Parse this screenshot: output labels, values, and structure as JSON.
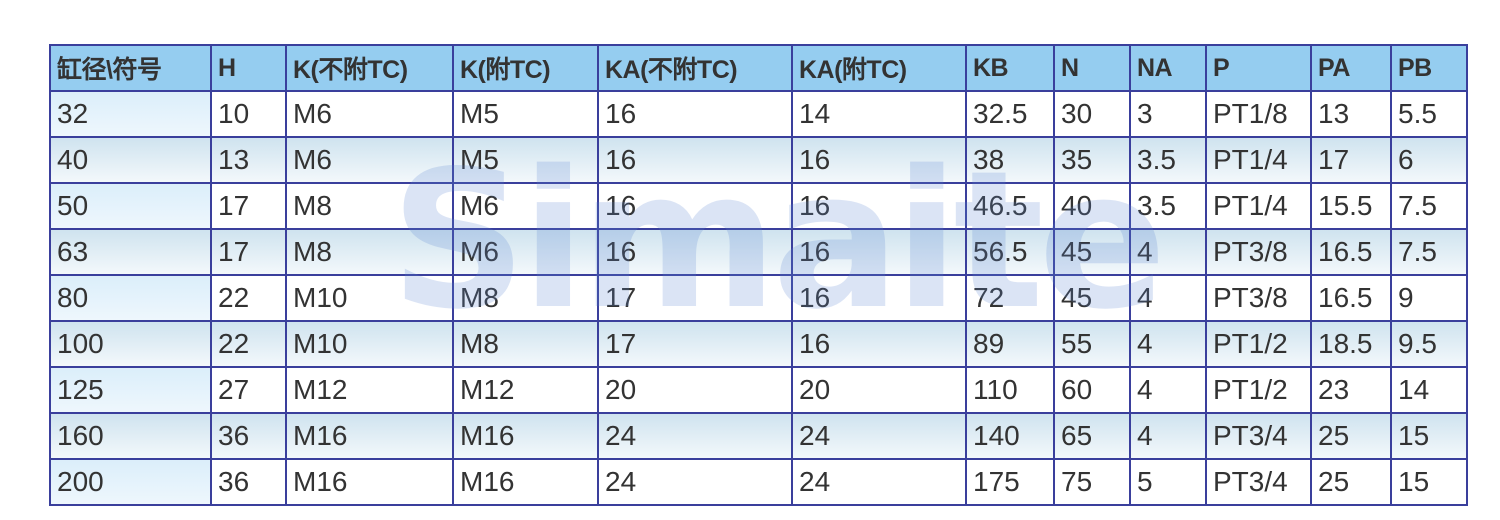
{
  "watermark": "Simaite",
  "headers": [
    "缸径\\符号",
    "H",
    "K(不附TC)",
    "K(附TC)",
    "KA(不附TC)",
    "KA(附TC)",
    "KB",
    "N",
    "NA",
    "P",
    "PA",
    "PB"
  ],
  "rows": [
    [
      "32",
      "10",
      "M6",
      "M5",
      "16",
      "14",
      "32.5",
      "30",
      "3",
      "PT1/8",
      "13",
      "5.5"
    ],
    [
      "40",
      "13",
      "M6",
      "M5",
      "16",
      "16",
      "38",
      "35",
      "3.5",
      "PT1/4",
      "17",
      "6"
    ],
    [
      "50",
      "17",
      "M8",
      "M6",
      "16",
      "16",
      "46.5",
      "40",
      "3.5",
      "PT1/4",
      "15.5",
      "7.5"
    ],
    [
      "63",
      "17",
      "M8",
      "M6",
      "16",
      "16",
      "56.5",
      "45",
      "4",
      "PT3/8",
      "16.5",
      "7.5"
    ],
    [
      "80",
      "22",
      "M10",
      "M8",
      "17",
      "16",
      "72",
      "45",
      "4",
      "PT3/8",
      "16.5",
      "9"
    ],
    [
      "100",
      "22",
      "M10",
      "M8",
      "17",
      "16",
      "89",
      "55",
      "4",
      "PT1/2",
      "18.5",
      "9.5"
    ],
    [
      "125",
      "27",
      "M12",
      "M12",
      "20",
      "20",
      "110",
      "60",
      "4",
      "PT1/2",
      "23",
      "14"
    ],
    [
      "160",
      "36",
      "M16",
      "M16",
      "24",
      "24",
      "140",
      "65",
      "4",
      "PT3/4",
      "25",
      "15"
    ],
    [
      "200",
      "36",
      "M16",
      "M16",
      "24",
      "24",
      "175",
      "75",
      "5",
      "PT3/4",
      "25",
      "15"
    ]
  ]
}
